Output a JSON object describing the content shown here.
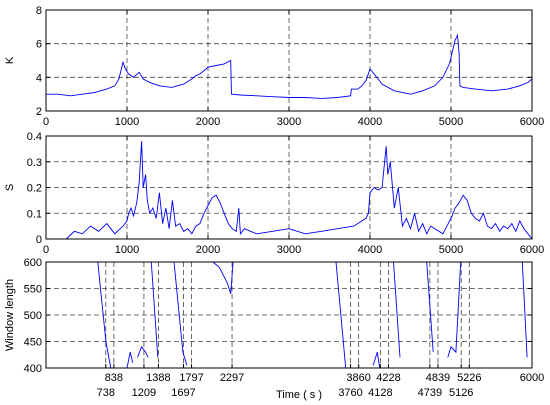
{
  "chart_data": [
    {
      "type": "line",
      "ylabel": "K",
      "xlim": [
        0,
        6000
      ],
      "ylim": [
        2,
        8
      ],
      "xticks": [
        0,
        1000,
        2000,
        3000,
        4000,
        5000,
        6000
      ],
      "yticks": [
        2,
        4,
        6,
        8
      ],
      "grid": true,
      "grid_x": [
        1000,
        2000,
        3000,
        4000,
        5000
      ],
      "grid_y": [
        4,
        6
      ],
      "color": "#0000ff",
      "series": [
        {
          "x": [
            0,
            150,
            300,
            450,
            600,
            750,
            850,
            900,
            950,
            980,
            1020,
            1080,
            1150,
            1200,
            1280,
            1400,
            1550,
            1700,
            1800,
            1850,
            1900,
            1950,
            2000,
            2100,
            2200,
            2280,
            2290,
            2400,
            2600,
            2800,
            3000,
            3200,
            3400,
            3600,
            3760,
            3770,
            3850,
            3900,
            3950,
            4000,
            4050,
            4150,
            4300,
            4500,
            4650,
            4800,
            4900,
            4980,
            5050,
            5080,
            5100,
            5110,
            5150,
            5300,
            5500,
            5700,
            5850,
            5950,
            6000
          ],
          "y": [
            3.0,
            3.0,
            2.9,
            3.0,
            3.1,
            3.3,
            3.5,
            3.9,
            4.9,
            4.5,
            4.2,
            4.0,
            4.3,
            3.9,
            3.7,
            3.5,
            3.4,
            3.6,
            3.9,
            4.1,
            4.2,
            4.4,
            4.6,
            4.7,
            4.8,
            5.0,
            3.0,
            2.95,
            2.9,
            2.85,
            2.8,
            2.8,
            2.75,
            2.8,
            2.9,
            3.3,
            3.3,
            3.5,
            3.8,
            4.5,
            4.2,
            3.6,
            3.2,
            3.0,
            3.2,
            3.5,
            4.0,
            4.8,
            6.2,
            6.5,
            5.4,
            3.5,
            3.4,
            3.3,
            3.2,
            3.3,
            3.5,
            3.7,
            3.9
          ]
        }
      ]
    },
    {
      "type": "line",
      "ylabel": "S",
      "xlim": [
        0,
        6000
      ],
      "ylim": [
        0,
        0.4
      ],
      "xticks": [
        0,
        1000,
        2000,
        3000,
        4000,
        5000,
        6000
      ],
      "yticks": [
        0,
        0.1,
        0.2,
        0.3,
        0.4
      ],
      "grid": true,
      "grid_x": [
        1000,
        2000,
        3000,
        4000,
        5000
      ],
      "grid_y": [
        0.1,
        0.2,
        0.3
      ],
      "color": "#0000ff",
      "series": [
        {
          "x": [
            250,
            350,
            450,
            550,
            650,
            750,
            850,
            950,
            1000,
            1020,
            1050,
            1080,
            1120,
            1150,
            1180,
            1200,
            1230,
            1250,
            1280,
            1320,
            1360,
            1400,
            1440,
            1480,
            1520,
            1560,
            1600,
            1650,
            1700,
            1750,
            1800,
            1850,
            1900,
            1950,
            2000,
            2050,
            2100,
            2150,
            2200,
            2250,
            2300,
            2350,
            2380,
            2400,
            2450,
            2600,
            2800,
            3000,
            3200,
            3400,
            3600,
            3800,
            3950,
            3980,
            4000,
            4050,
            4100,
            4150,
            4180,
            4200,
            4220,
            4250,
            4300,
            4350,
            4400,
            4450,
            4500,
            4550,
            4600,
            4650,
            4700,
            4750,
            4800,
            4850,
            4900,
            4950,
            5000,
            5050,
            5100,
            5150,
            5200,
            5250,
            5300,
            5350,
            5400,
            5450,
            5500,
            5550,
            5600,
            5650,
            5700,
            5750,
            5800,
            5850,
            5900,
            5950,
            6000
          ],
          "y": [
            0.0,
            0.03,
            0.02,
            0.05,
            0.03,
            0.06,
            0.02,
            0.05,
            0.07,
            0.1,
            0.12,
            0.09,
            0.14,
            0.22,
            0.38,
            0.2,
            0.25,
            0.15,
            0.1,
            0.12,
            0.08,
            0.18,
            0.06,
            0.12,
            0.04,
            0.15,
            0.05,
            0.06,
            0.03,
            0.04,
            0.02,
            0.05,
            0.06,
            0.1,
            0.13,
            0.16,
            0.17,
            0.14,
            0.1,
            0.06,
            0.04,
            0.03,
            0.12,
            0.02,
            0.04,
            0.02,
            0.03,
            0.04,
            0.02,
            0.03,
            0.04,
            0.05,
            0.08,
            0.1,
            0.18,
            0.2,
            0.19,
            0.2,
            0.3,
            0.36,
            0.25,
            0.3,
            0.12,
            0.2,
            0.05,
            0.08,
            0.04,
            0.1,
            0.03,
            0.06,
            0.02,
            0.05,
            0.04,
            0.03,
            0.02,
            0.05,
            0.08,
            0.12,
            0.14,
            0.17,
            0.15,
            0.1,
            0.08,
            0.07,
            0.1,
            0.05,
            0.04,
            0.06,
            0.03,
            0.05,
            0.04,
            0.06,
            0.03,
            0.07,
            0.04,
            0.02,
            0.0
          ]
        }
      ]
    },
    {
      "type": "line",
      "ylabel": "Window length",
      "xlabel": "Time ( s )",
      "xlim": [
        0,
        6000
      ],
      "ylim": [
        400,
        600
      ],
      "xticks": [],
      "yticks": [
        400,
        450,
        500,
        550,
        600
      ],
      "grid": true,
      "grid_x": [
        738,
        838,
        1209,
        1388,
        1697,
        1797,
        2297,
        3760,
        3860,
        4128,
        4228,
        4739,
        4839,
        5126,
        5226
      ],
      "grid_y": [
        450,
        500,
        550
      ],
      "event_labels_upper": [
        "838",
        "1388",
        "1797",
        "2297",
        "3860",
        "4228",
        "4839",
        "5226",
        "6000"
      ],
      "event_labels_upper_x": [
        838,
        1388,
        1797,
        2297,
        3860,
        4228,
        4839,
        5226,
        6000
      ],
      "event_labels_lower": [
        "738",
        "1209",
        "1697",
        "3760",
        "4128",
        "4739",
        "5126"
      ],
      "event_labels_lower_x": [
        738,
        1209,
        1697,
        3760,
        4128,
        4739,
        5126
      ],
      "color": "#0000ff",
      "segments": [
        {
          "x": [
            640,
            740,
            800
          ],
          "y": [
            600,
            450,
            400
          ]
        },
        {
          "x": [
            1000,
            1040,
            1070
          ],
          "y": [
            400,
            430,
            410
          ]
        },
        {
          "x": [
            1130,
            1180,
            1230,
            1260
          ],
          "y": [
            420,
            440,
            430,
            420
          ]
        },
        {
          "x": [
            1300,
            1380
          ],
          "y": [
            600,
            420
          ]
        },
        {
          "x": [
            1580,
            1690,
            1740
          ],
          "y": [
            600,
            430,
            405
          ]
        },
        {
          "x": [
            2060,
            2140,
            2240,
            2280,
            2310
          ],
          "y": [
            600,
            590,
            560,
            540,
            600
          ]
        },
        {
          "x": [
            3580,
            3700
          ],
          "y": [
            600,
            400
          ]
        },
        {
          "x": [
            4040,
            4090,
            4120
          ],
          "y": [
            405,
            430,
            400
          ]
        },
        {
          "x": [
            4290,
            4370
          ],
          "y": [
            600,
            420
          ]
        },
        {
          "x": [
            4700,
            4780
          ],
          "y": [
            600,
            430
          ]
        },
        {
          "x": [
            4960,
            5000,
            5060,
            5120
          ],
          "y": [
            420,
            440,
            430,
            600
          ]
        },
        {
          "x": [
            5880,
            5940
          ],
          "y": [
            600,
            420
          ]
        }
      ]
    }
  ]
}
